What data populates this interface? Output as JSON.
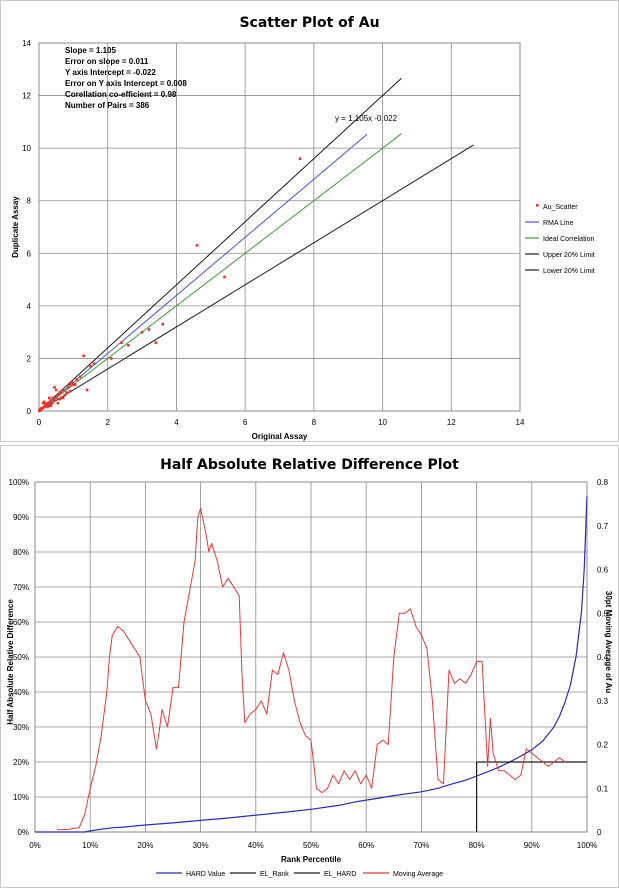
{
  "chart_data": [
    {
      "type": "scatter",
      "title": "Scatter Plot of Au",
      "xlabel": "Original Assay",
      "ylabel": "Duplicate Assay",
      "xlim": [
        0,
        14
      ],
      "ylim": [
        0,
        14
      ],
      "x_ticks": [
        "0",
        "2",
        "4",
        "6",
        "8",
        "10",
        "12",
        "14"
      ],
      "y_ticks": [
        "0",
        "2",
        "4",
        "6",
        "8",
        "10",
        "12",
        "14"
      ],
      "grid": true,
      "legend_position": "right",
      "stats_lines": [
        "Slope = 1.105",
        "Error on slope = 0.011",
        "Y axis Intercept = -0.022",
        "Error on Y axis Intercept = 0.008",
        "Corellation co-efficient = 0.98",
        "Number of Pairs = 386"
      ],
      "trendline_label": "y = 1.105x -0.022",
      "legend": [
        {
          "name": "Au_Scatter",
          "color": "#e8322a",
          "kind": "marker"
        },
        {
          "name": "RMA Line",
          "color": "#4a55d4",
          "kind": "line"
        },
        {
          "name": "Ideal Correlation",
          "color": "#3d9a37",
          "kind": "line"
        },
        {
          "name": "Upper 20% Limit",
          "color": "#1a1a1a",
          "kind": "line"
        },
        {
          "name": "Lower 20% Limit",
          "color": "#1a1a1a",
          "kind": "line"
        }
      ],
      "lines": [
        {
          "name": "RMA Line",
          "color": "#4a55d4",
          "points": [
            [
              0,
              -0.022
            ],
            [
              9.55,
              10.53
            ]
          ]
        },
        {
          "name": "Ideal Correlation",
          "color": "#3d9a37",
          "points": [
            [
              0,
              0
            ],
            [
              10.55,
              10.55
            ]
          ]
        },
        {
          "name": "Upper 20% Limit",
          "color": "#1a1a1a",
          "points": [
            [
              0,
              0
            ],
            [
              10.55,
              12.66
            ]
          ]
        },
        {
          "name": "Lower 20% Limit",
          "color": "#1a1a1a",
          "points": [
            [
              0,
              0
            ],
            [
              12.65,
              10.12
            ]
          ]
        }
      ],
      "scatter": [
        [
          7.6,
          9.6
        ],
        [
          4.6,
          6.3
        ],
        [
          5.4,
          5.1
        ],
        [
          3.6,
          3.3
        ],
        [
          3.4,
          2.6
        ],
        [
          3.2,
          3.1
        ],
        [
          3.0,
          3.0
        ],
        [
          2.6,
          2.5
        ],
        [
          2.4,
          2.6
        ],
        [
          2.1,
          2.0
        ],
        [
          1.3,
          2.1
        ],
        [
          1.6,
          1.8
        ],
        [
          1.5,
          1.7
        ],
        [
          1.4,
          0.8
        ],
        [
          1.2,
          1.3
        ],
        [
          1.1,
          1.2
        ],
        [
          1.0,
          1.0
        ],
        [
          0.95,
          1.1
        ],
        [
          0.9,
          1.0
        ],
        [
          0.85,
          0.9
        ],
        [
          0.8,
          0.7
        ],
        [
          0.75,
          0.6
        ],
        [
          0.7,
          0.5
        ],
        [
          0.65,
          0.5
        ],
        [
          0.6,
          0.7
        ],
        [
          0.55,
          0.6
        ],
        [
          0.5,
          0.5
        ],
        [
          0.5,
          0.8
        ],
        [
          0.45,
          0.9
        ],
        [
          0.45,
          0.4
        ],
        [
          0.4,
          0.5
        ],
        [
          0.38,
          0.3
        ],
        [
          0.35,
          0.4
        ],
        [
          0.32,
          0.35
        ],
        [
          0.3,
          0.2
        ],
        [
          0.28,
          0.3
        ],
        [
          0.25,
          0.3
        ],
        [
          0.22,
          0.25
        ],
        [
          0.2,
          0.2
        ],
        [
          0.18,
          0.25
        ],
        [
          0.15,
          0.15
        ],
        [
          0.12,
          0.3
        ],
        [
          0.1,
          0.1
        ],
        [
          0.08,
          0.12
        ],
        [
          0.06,
          0.05
        ],
        [
          0.05,
          0.08
        ],
        [
          0.04,
          0.03
        ],
        [
          0.03,
          0.05
        ],
        [
          0.02,
          0.02
        ],
        [
          0.01,
          0.01
        ],
        [
          0.6,
          0.45
        ],
        [
          0.7,
          0.8
        ],
        [
          0.9,
          0.75
        ],
        [
          1.05,
          1.0
        ],
        [
          0.55,
          0.3
        ],
        [
          0.35,
          0.2
        ],
        [
          0.25,
          0.15
        ],
        [
          0.15,
          0.35
        ],
        [
          0.3,
          0.5
        ]
      ]
    },
    {
      "type": "line",
      "title": "Half Absolute Relative Difference Plot",
      "xlabel": "Rank Percentile",
      "ylabel": "Half Absolute Relative Difference",
      "ylabel_right": "30pt Moving Average of Au",
      "xlim": [
        0,
        100
      ],
      "ylim": [
        0,
        100
      ],
      "ylim_right": [
        0,
        0.8
      ],
      "x_ticks": [
        "0%",
        "10%",
        "20%",
        "30%",
        "40%",
        "50%",
        "60%",
        "70%",
        "80%",
        "90%",
        "100%"
      ],
      "y_ticks": [
        "0%",
        "10%",
        "20%",
        "30%",
        "40%",
        "50%",
        "60%",
        "70%",
        "80%",
        "90%",
        "100%"
      ],
      "y_ticks_right": [
        "0",
        "0.1",
        "0.2",
        "0.3",
        "0.4",
        "0.5",
        "0.6",
        "0.7",
        "0.8"
      ],
      "grid": true,
      "legend_position": "bottom",
      "legend": [
        {
          "name": "HARD Value",
          "color": "#2b2bb0"
        },
        {
          "name": "EL_Rank",
          "color": "#1a1a1a"
        },
        {
          "name": "EL_HARD",
          "color": "#1a1a1a"
        },
        {
          "name": "Moving Average",
          "color": "#e23b3b"
        }
      ],
      "series": [
        {
          "name": "HARD Value",
          "color": "#2b2bb0",
          "axis": "left",
          "points": [
            [
              0,
              0
            ],
            [
              9,
              0
            ],
            [
              10,
              0.3
            ],
            [
              12,
              0.8
            ],
            [
              14,
              1.2
            ],
            [
              16,
              1.4
            ],
            [
              20,
              2
            ],
            [
              25,
              2.6
            ],
            [
              30,
              3.3
            ],
            [
              35,
              4
            ],
            [
              40,
              4.8
            ],
            [
              45,
              5.6
            ],
            [
              50,
              6.5
            ],
            [
              55,
              7.6
            ],
            [
              58,
              8.6
            ],
            [
              60,
              9.1
            ],
            [
              62,
              9.6
            ],
            [
              65,
              10.4
            ],
            [
              70,
              11.5
            ],
            [
              73,
              12.5
            ],
            [
              75,
              13.5
            ],
            [
              78,
              14.8
            ],
            [
              80,
              16
            ],
            [
              82,
              17.2
            ],
            [
              84,
              18.5
            ],
            [
              86,
              20
            ],
            [
              88,
              21.7
            ],
            [
              90,
              23.5
            ],
            [
              92,
              26
            ],
            [
              94,
              30
            ],
            [
              95,
              33
            ],
            [
              96,
              37
            ],
            [
              97,
              42
            ],
            [
              98,
              50
            ],
            [
              99,
              63
            ],
            [
              99.5,
              75
            ],
            [
              100,
              96
            ]
          ]
        },
        {
          "name": "EL_Rank",
          "color": "#1a1a1a",
          "axis": "left",
          "points": [
            [
              80,
              0
            ],
            [
              80,
              20
            ]
          ]
        },
        {
          "name": "EL_HARD",
          "color": "#1a1a1a",
          "axis": "left",
          "points": [
            [
              80,
              20
            ],
            [
              100,
              20
            ]
          ]
        },
        {
          "name": "Moving Average",
          "color": "#e23b3b",
          "axis": "right",
          "points": [
            [
              4,
              0.005
            ],
            [
              6,
              0.006
            ],
            [
              8,
              0.01
            ],
            [
              9,
              0.04
            ],
            [
              10,
              0.1
            ],
            [
              11,
              0.15
            ],
            [
              12,
              0.22
            ],
            [
              13,
              0.32
            ],
            [
              13.5,
              0.4
            ],
            [
              14,
              0.45
            ],
            [
              15,
              0.47
            ],
            [
              16,
              0.46
            ],
            [
              17,
              0.44
            ],
            [
              18,
              0.42
            ],
            [
              19,
              0.4
            ],
            [
              19.5,
              0.35
            ],
            [
              20,
              0.3
            ],
            [
              21,
              0.27
            ],
            [
              22,
              0.19
            ],
            [
              22.5,
              0.23
            ],
            [
              23,
              0.28
            ],
            [
              24,
              0.24
            ],
            [
              25,
              0.33
            ],
            [
              26,
              0.33
            ],
            [
              27,
              0.48
            ],
            [
              28,
              0.55
            ],
            [
              29,
              0.62
            ],
            [
              29.5,
              0.72
            ],
            [
              30,
              0.74
            ],
            [
              31,
              0.68
            ],
            [
              31.5,
              0.64
            ],
            [
              32,
              0.66
            ],
            [
              33,
              0.62
            ],
            [
              34,
              0.56
            ],
            [
              35,
              0.58
            ],
            [
              36,
              0.56
            ],
            [
              37,
              0.54
            ],
            [
              37.5,
              0.36
            ],
            [
              38,
              0.25
            ],
            [
              39,
              0.27
            ],
            [
              40,
              0.28
            ],
            [
              41,
              0.3
            ],
            [
              42,
              0.27
            ],
            [
              42.5,
              0.32
            ],
            [
              43,
              0.37
            ],
            [
              44,
              0.36
            ],
            [
              45,
              0.41
            ],
            [
              46,
              0.37
            ],
            [
              47,
              0.3
            ],
            [
              48,
              0.25
            ],
            [
              49,
              0.22
            ],
            [
              50,
              0.21
            ],
            [
              51,
              0.1
            ],
            [
              52,
              0.09
            ],
            [
              53,
              0.1
            ],
            [
              54,
              0.13
            ],
            [
              55,
              0.11
            ],
            [
              56,
              0.14
            ],
            [
              57,
              0.12
            ],
            [
              58,
              0.14
            ],
            [
              59,
              0.11
            ],
            [
              60,
              0.13
            ],
            [
              61,
              0.1
            ],
            [
              62,
              0.2
            ],
            [
              63,
              0.21
            ],
            [
              64,
              0.2
            ],
            [
              65,
              0.4
            ],
            [
              66,
              0.5
            ],
            [
              67,
              0.5
            ],
            [
              68,
              0.51
            ],
            [
              69,
              0.47
            ],
            [
              70,
              0.45
            ],
            [
              71,
              0.42
            ],
            [
              72,
              0.3
            ],
            [
              73,
              0.12
            ],
            [
              74,
              0.11
            ],
            [
              75,
              0.37
            ],
            [
              76,
              0.34
            ],
            [
              77,
              0.35
            ],
            [
              78,
              0.34
            ],
            [
              79,
              0.36
            ],
            [
              80,
              0.39
            ],
            [
              81,
              0.39
            ],
            [
              82,
              0.15
            ],
            [
              82.5,
              0.26
            ],
            [
              83,
              0.18
            ],
            [
              84,
              0.14
            ],
            [
              85,
              0.14
            ],
            [
              86,
              0.13
            ],
            [
              87,
              0.12
            ],
            [
              88,
              0.13
            ],
            [
              89,
              0.19
            ],
            [
              90,
              0.18
            ],
            [
              91,
              0.17
            ],
            [
              92,
              0.16
            ],
            [
              93,
              0.15
            ],
            [
              94,
              0.16
            ],
            [
              95,
              0.17
            ],
            [
              96,
              0.16
            ]
          ]
        }
      ]
    }
  ]
}
